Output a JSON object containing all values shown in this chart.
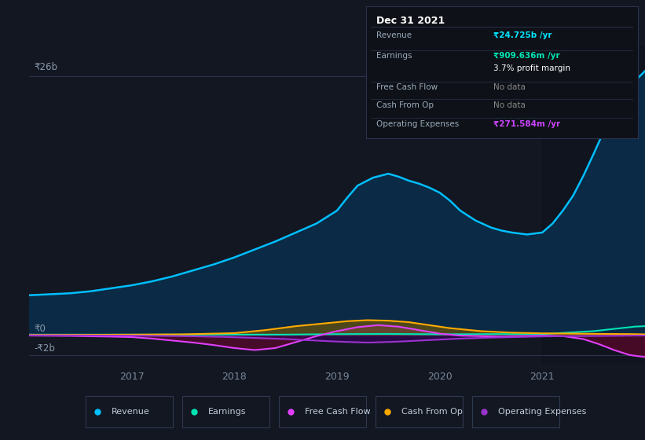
{
  "bg_color": "#131722",
  "plot_bg_color": "#131722",
  "revenue_color": "#00bfff",
  "earnings_color": "#00e5b4",
  "fcf_color": "#e040fb",
  "cashop_color": "#ffaa00",
  "opex_color": "#9933cc",
  "x_range": [
    2016.0,
    2022.0
  ],
  "y_range": [
    -2.8,
    29.0
  ],
  "x_ticks": [
    2017,
    2018,
    2019,
    2020,
    2021
  ],
  "ylabel_26b": "₹26b",
  "ylabel_0": "₹0",
  "ylabel_m2b": "-₹2b",
  "revenue_x": [
    2016.0,
    2016.2,
    2016.4,
    2016.6,
    2016.8,
    2017.0,
    2017.2,
    2017.4,
    2017.6,
    2017.8,
    2018.0,
    2018.2,
    2018.4,
    2018.6,
    2018.8,
    2019.0,
    2019.1,
    2019.2,
    2019.35,
    2019.5,
    2019.6,
    2019.7,
    2019.8,
    2019.9,
    2020.0,
    2020.1,
    2020.2,
    2020.35,
    2020.5,
    2020.6,
    2020.7,
    2020.85,
    2021.0,
    2021.1,
    2021.2,
    2021.3,
    2021.4,
    2021.5,
    2021.6,
    2021.7,
    2021.8,
    2021.9,
    2022.0
  ],
  "revenue_y": [
    4.0,
    4.1,
    4.2,
    4.4,
    4.7,
    5.0,
    5.4,
    5.9,
    6.5,
    7.1,
    7.8,
    8.6,
    9.4,
    10.3,
    11.2,
    12.5,
    13.8,
    15.0,
    15.8,
    16.2,
    15.9,
    15.5,
    15.2,
    14.8,
    14.3,
    13.5,
    12.5,
    11.5,
    10.8,
    10.5,
    10.3,
    10.1,
    10.3,
    11.2,
    12.5,
    14.0,
    16.0,
    18.2,
    20.5,
    22.5,
    24.0,
    25.5,
    26.5
  ],
  "earnings_x": [
    2016.0,
    2016.5,
    2017.0,
    2017.5,
    2018.0,
    2018.5,
    2019.0,
    2019.5,
    2020.0,
    2020.5,
    2021.0,
    2021.5,
    2021.9,
    2022.0
  ],
  "earnings_y": [
    0.05,
    0.05,
    0.05,
    0.05,
    0.05,
    0.05,
    0.1,
    0.12,
    0.08,
    0.1,
    0.1,
    0.4,
    0.85,
    0.9
  ],
  "fcf_x": [
    2016.0,
    2016.4,
    2016.8,
    2017.0,
    2017.2,
    2017.4,
    2017.6,
    2017.8,
    2018.0,
    2018.2,
    2018.4,
    2018.6,
    2018.8,
    2019.0,
    2019.2,
    2019.4,
    2019.6,
    2019.8,
    2020.0,
    2020.2,
    2020.4,
    2020.6,
    2020.8,
    2021.0,
    2021.2,
    2021.4,
    2021.55,
    2021.7,
    2021.85,
    2022.0
  ],
  "fcf_y": [
    -0.05,
    -0.08,
    -0.15,
    -0.2,
    -0.35,
    -0.55,
    -0.75,
    -1.0,
    -1.3,
    -1.5,
    -1.3,
    -0.7,
    -0.1,
    0.4,
    0.8,
    1.0,
    0.85,
    0.5,
    0.15,
    -0.05,
    -0.1,
    -0.15,
    -0.1,
    -0.05,
    -0.1,
    -0.4,
    -0.9,
    -1.5,
    -2.0,
    -2.2
  ],
  "cashop_x": [
    2016.0,
    2016.5,
    2017.0,
    2017.5,
    2018.0,
    2018.3,
    2018.6,
    2018.9,
    2019.1,
    2019.3,
    2019.5,
    2019.7,
    2019.9,
    2020.1,
    2020.4,
    2020.7,
    2021.0,
    2021.3,
    2021.6,
    2021.9,
    2022.0
  ],
  "cashop_y": [
    0.02,
    0.03,
    0.05,
    0.08,
    0.2,
    0.5,
    0.9,
    1.2,
    1.4,
    1.5,
    1.45,
    1.3,
    1.0,
    0.7,
    0.4,
    0.25,
    0.18,
    0.15,
    0.12,
    0.1,
    0.08
  ],
  "opex_x": [
    2016.0,
    2016.5,
    2017.0,
    2017.3,
    2017.6,
    2017.9,
    2018.2,
    2018.5,
    2018.8,
    2019.0,
    2019.3,
    2019.6,
    2019.9,
    2020.2,
    2020.5,
    2020.8,
    2021.0,
    2021.3,
    2021.6,
    2021.9,
    2022.0
  ],
  "opex_y": [
    -0.02,
    -0.03,
    -0.05,
    -0.08,
    -0.12,
    -0.18,
    -0.28,
    -0.4,
    -0.55,
    -0.65,
    -0.75,
    -0.65,
    -0.5,
    -0.35,
    -0.25,
    -0.18,
    -0.13,
    -0.1,
    -0.08,
    -0.05,
    -0.04
  ],
  "tooltip_title": "Dec 31 2021",
  "tooltip_rows": [
    [
      "Revenue",
      "₹24.725b /yr",
      "#00e5ff",
      true
    ],
    [
      "Earnings",
      "₹909.636m /yr",
      "#00e5b4",
      true
    ],
    [
      "",
      "3.7% profit margin",
      "#ffffff",
      false
    ],
    [
      "Free Cash Flow",
      "No data",
      "#888888",
      false
    ],
    [
      "Cash From Op",
      "No data",
      "#888888",
      false
    ],
    [
      "Operating Expenses",
      "₹271.584m /yr",
      "#cc44ff",
      true
    ]
  ],
  "legend_items": [
    [
      "Revenue",
      "#00bfff"
    ],
    [
      "Earnings",
      "#00e5b4"
    ],
    [
      "Free Cash Flow",
      "#e040fb"
    ],
    [
      "Cash From Op",
      "#ffaa00"
    ],
    [
      "Operating Expenses",
      "#9933cc"
    ]
  ]
}
